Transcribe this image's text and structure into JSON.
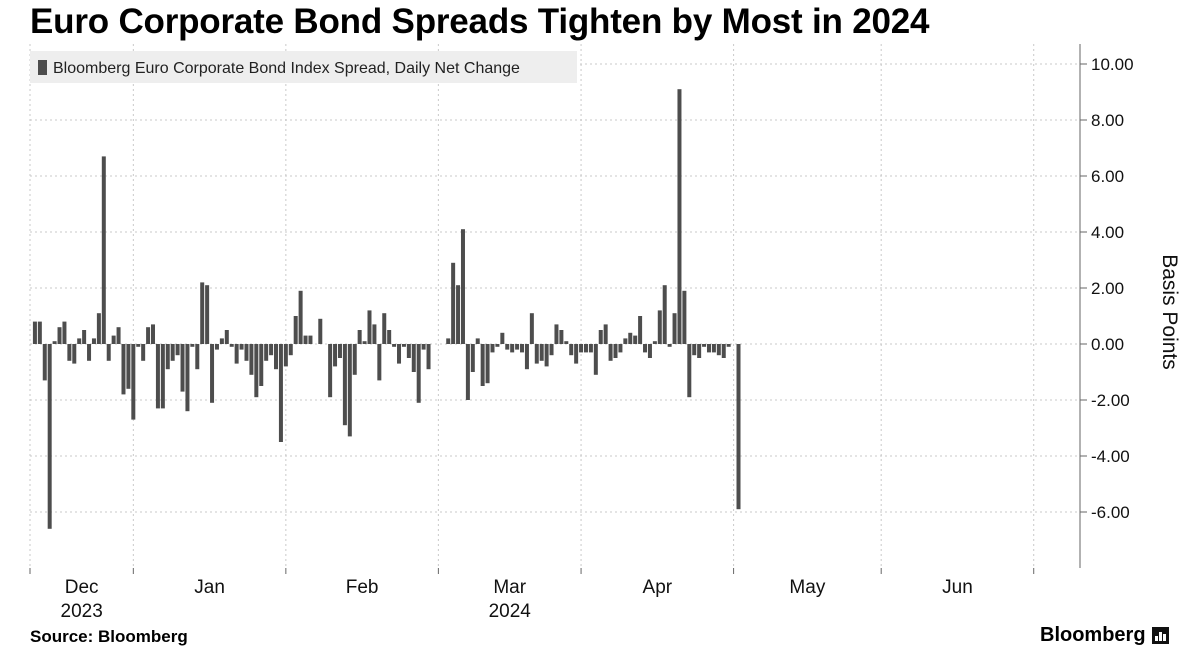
{
  "title": "Euro Corporate Bond Spreads Tighten by Most in 2024",
  "source": "Source: Bloomberg",
  "brand": "Bloomberg",
  "brand_icon": "bloomberg-terminal-icon",
  "colors": {
    "bar": "#4d4d4d",
    "grid": "#c9c9c9",
    "axis": "#666666",
    "legend_bg": "#eeeeee"
  },
  "chart_data": {
    "type": "bar",
    "title": "Euro Corporate Bond Spreads Tighten by Most in 2024",
    "ylabel": "Basis Points",
    "ylim": [
      -8,
      10.5
    ],
    "yticks": [
      10,
      8,
      6,
      4,
      2,
      0,
      -2,
      -4,
      -6
    ],
    "ytick_labels": [
      "10.00",
      "8.00",
      "6.00",
      "4.00",
      "2.00",
      "0.00",
      "-2.00",
      "-4.00",
      "-6.00"
    ],
    "y_axis_position": "right",
    "grid": true,
    "legend": {
      "label": "Bloomberg Euro Corporate Bond Index Spread, Daily Net Change",
      "position": "top-left"
    },
    "x_month_labels": [
      "Dec",
      "Jan",
      "Feb",
      "Mar",
      "Apr",
      "May",
      "Jun"
    ],
    "x_year_labels": [
      {
        "label": "2023",
        "month_index": 0
      },
      {
        "label": "2024",
        "month_index": 3
      }
    ],
    "x_range_days": [
      0,
      213
    ],
    "month_boundaries_days": [
      0,
      21,
      52,
      83,
      112,
      143,
      173,
      204
    ],
    "series": [
      {
        "name": "Bloomberg Euro Corporate Bond Index Spread, Daily Net Change",
        "x": [
          1,
          2,
          3,
          4,
          5,
          6,
          7,
          8,
          9,
          10,
          11,
          12,
          13,
          14,
          15,
          16,
          17,
          18,
          19,
          20,
          21,
          22,
          23,
          24,
          25,
          26,
          27,
          28,
          29,
          30,
          31,
          32,
          33,
          34,
          35,
          36,
          37,
          38,
          39,
          40,
          41,
          42,
          43,
          44,
          45,
          46,
          47,
          48,
          49,
          50,
          51,
          52,
          53,
          54,
          55,
          56,
          57,
          58,
          59,
          60,
          61,
          62,
          63,
          64,
          65,
          66,
          67,
          68,
          69,
          70,
          71,
          72,
          73,
          74,
          75,
          76,
          77,
          78,
          79,
          80,
          81,
          82,
          83,
          84,
          85,
          86,
          87,
          88,
          89,
          90,
          91,
          92,
          93,
          94,
          95,
          96,
          97,
          98,
          99,
          100,
          101,
          102,
          103,
          104,
          105,
          106,
          107,
          108,
          109,
          110,
          111,
          112,
          113,
          114,
          115,
          116,
          117,
          118,
          119,
          120,
          121,
          122,
          123,
          124,
          125,
          126,
          127,
          128,
          129,
          130,
          131,
          132,
          133,
          134,
          135,
          136,
          137,
          138,
          139,
          140,
          141,
          142,
          143,
          144,
          145,
          146,
          147,
          148,
          149,
          150,
          151,
          152,
          153,
          154,
          155,
          156,
          157,
          158,
          159,
          160,
          161,
          162,
          163,
          164,
          165,
          166,
          167,
          168,
          169,
          170,
          171,
          172,
          173,
          174,
          175,
          176,
          177,
          178,
          179,
          180,
          181,
          182,
          183,
          184,
          185,
          186,
          187,
          188,
          189,
          190,
          191,
          192,
          193,
          194,
          195,
          196,
          197,
          198,
          199,
          200,
          201,
          202,
          203,
          204,
          205,
          206,
          207,
          208,
          209,
          210,
          211
        ],
        "values": [
          0.8,
          0.8,
          -1.3,
          -6.6,
          0.1,
          0.6,
          0.8,
          -0.6,
          -0.7,
          0.2,
          0.5,
          -0.6,
          0.2,
          1.1,
          6.7,
          -0.6,
          0.3,
          0.6,
          -1.8,
          -1.6,
          -2.7,
          -0.1,
          -0.6,
          0.6,
          0.7,
          -2.3,
          -2.3,
          -0.9,
          -0.6,
          -0.4,
          -1.7,
          -2.4,
          -0.1,
          -0.9,
          2.2,
          2.1,
          -2.1,
          -0.2,
          0.2,
          0.5,
          -0.1,
          -0.7,
          -0.2,
          -0.6,
          -1.1,
          -1.9,
          -1.5,
          -0.6,
          -0.4,
          -0.9,
          -3.5,
          -0.8,
          -0.4,
          1.0,
          1.9,
          0.3,
          0.3,
          0.0,
          0.9,
          0.0,
          -1.9,
          -0.8,
          -0.5,
          -2.9,
          -3.3,
          -1.1,
          0.5,
          0.1,
          1.2,
          0.7,
          -1.3,
          1.1,
          0.5,
          -0.1,
          -0.7,
          -0.1,
          -0.5,
          -1.0,
          -2.1,
          -0.2,
          -0.9,
          0.0,
          0.0,
          0.0,
          0.2,
          2.9,
          2.1,
          4.1,
          -2.0,
          -1.0,
          0.2,
          -1.5,
          -1.4,
          -0.3,
          -0.1,
          0.4,
          -0.2,
          -0.3,
          -0.2,
          -0.3,
          -0.9,
          1.1,
          -0.7,
          -0.6,
          -0.8,
          -0.4,
          0.7,
          0.5,
          0.1,
          -0.4,
          -0.7,
          -0.3,
          -0.3,
          -0.3,
          -1.1,
          0.5,
          0.7,
          -0.6,
          -0.5,
          -0.3,
          0.2,
          0.4,
          0.3,
          1.0,
          -0.3,
          -0.5,
          0.1,
          1.2,
          2.1,
          -0.1,
          1.1,
          9.1,
          1.9,
          -1.9,
          -0.4,
          -0.5,
          -0.1,
          -0.3,
          -0.3,
          -0.4,
          -0.5,
          -0.1,
          0.0,
          -5.9,
          0.0,
          0.0,
          0.0,
          0.0,
          0.0,
          0.0,
          0.0,
          0.0,
          0.0,
          0.0,
          0.0,
          0.0,
          0.0,
          0.0,
          0.0,
          0.0,
          0.0,
          0.0,
          0.0,
          0.0,
          0.0,
          0.0,
          0.0,
          0.0,
          0.0,
          0.0,
          0.0,
          0.0,
          0.0,
          0.0,
          0.0,
          0.0,
          0.0,
          0.0,
          0.0,
          0.0,
          0.0,
          0.0,
          0.0,
          0.0,
          0.0,
          0.0,
          0.0,
          0.0,
          0.0,
          0.0,
          0.0,
          0.0,
          0.0,
          0.0,
          0.0,
          0.0,
          0.0,
          0.0,
          0.0,
          0.0,
          0.0,
          0.0,
          0.0,
          0.0,
          0.0,
          0.0,
          0.0,
          0.0,
          0.0,
          0.0,
          0.0
        ]
      }
    ]
  }
}
